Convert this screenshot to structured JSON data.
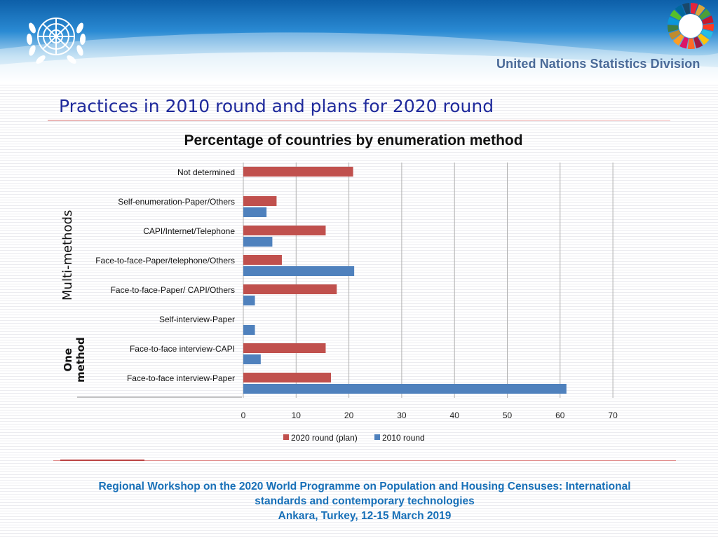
{
  "header": {
    "organization": "United Nations Statistics Division",
    "emblem_icon": "un-emblem-icon",
    "sdg_icon": "sdg-wheel-icon",
    "colors": {
      "banner_top": "#0d5fa8",
      "banner_mid": "#2a8ad3",
      "title": "#1f2a9c",
      "footer": "#1870b8"
    }
  },
  "slide": {
    "title": "Practices in 2010 round and plans for 2020 round",
    "group_multi": "Multi-methods",
    "group_one_line1": "One",
    "group_one_line2": "method"
  },
  "chart_data": {
    "type": "bar",
    "orientation": "horizontal",
    "title": "Percentage of countries by enumeration method",
    "categories": [
      "Not determined",
      "Self-enumeration-Paper/Others",
      "CAPI/Internet/Telephone",
      "Face-to-face-Paper/telephone/Others",
      "Face-to-face-Paper/ CAPI/Others",
      "Self-interview-Paper",
      "Face-to-face interview-CAPI",
      "Face-to-face interview-Paper"
    ],
    "series": [
      {
        "name": "2020 round (plan)",
        "color": "#c0504d",
        "values": [
          20.8,
          6.3,
          15.6,
          7.3,
          17.7,
          0,
          15.6,
          16.6
        ]
      },
      {
        "name": "2010 round",
        "color": "#4f81bd",
        "values": [
          0,
          4.4,
          5.5,
          21.0,
          2.2,
          2.2,
          3.3,
          61.2
        ]
      }
    ],
    "xlim": [
      0,
      70
    ],
    "xticks": [
      0,
      10,
      20,
      30,
      40,
      50,
      60,
      70
    ],
    "grid": true,
    "legend_position": "bottom",
    "xlabel": "",
    "ylabel": ""
  },
  "footer": {
    "line1": "Regional Workshop on the 2020 World Programme on Population and Housing Censuses: International",
    "line2": "standards and contemporary technologies",
    "line3": "Ankara, Turkey, 12-15 March 2019"
  }
}
